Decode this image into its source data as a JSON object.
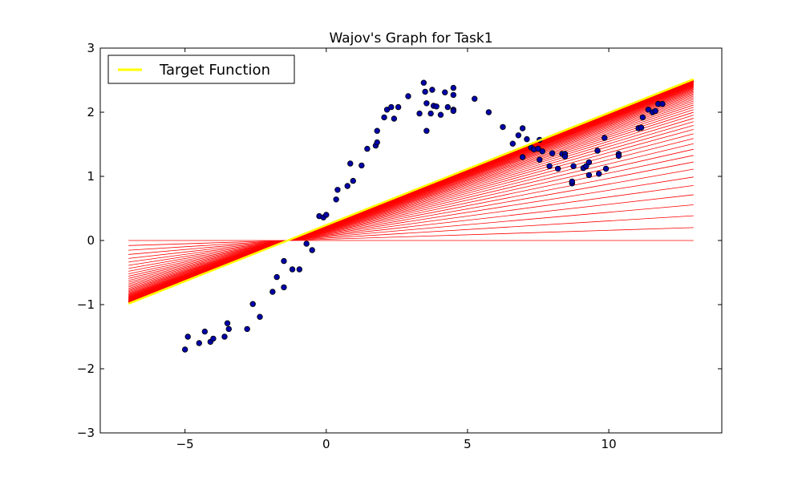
{
  "chart_data": {
    "type": "scatter",
    "title": "Wajov's Graph for Task1",
    "xlabel": "",
    "ylabel": "",
    "xlim": [
      -8,
      14
    ],
    "ylim": [
      -3,
      3
    ],
    "xticks": [
      -5,
      0,
      5,
      10
    ],
    "xtick_labels": [
      "−5",
      "0",
      "5",
      "10"
    ],
    "yticks": [
      3,
      2,
      1,
      0,
      -1,
      -2,
      -3
    ],
    "ytick_labels": [
      "3",
      "2",
      "1",
      "0",
      "−1",
      "−2",
      "−3"
    ],
    "grid": false,
    "legend": {
      "placement": "top-left",
      "entries": [
        {
          "label": "Target Function",
          "color": "#ffff00"
        }
      ]
    },
    "colors": {
      "scatter_fill": "#0000aa",
      "fit_lines": "#ff0000",
      "target": "#ffff00"
    },
    "fit_lines": {
      "x_range": [
        -7,
        13
      ],
      "count": 60,
      "first": {
        "intercept": 0.0,
        "slope": 0.0
      },
      "final": {
        "intercept": 0.24,
        "slope": 0.175
      }
    },
    "target_function": {
      "name": "Target Function",
      "x_range": [
        -7,
        13
      ],
      "intercept": 0.24,
      "slope": 0.175
    },
    "points": [
      [
        -5.0,
        -1.7
      ],
      [
        -4.9,
        -1.5
      ],
      [
        -4.5,
        -1.6
      ],
      [
        -4.3,
        -1.42
      ],
      [
        -4.1,
        -1.58
      ],
      [
        -4.0,
        -1.53
      ],
      [
        -3.6,
        -1.5
      ],
      [
        -3.5,
        -1.29
      ],
      [
        -3.45,
        -1.38
      ],
      [
        -2.8,
        -1.38
      ],
      [
        -2.6,
        -0.99
      ],
      [
        -2.35,
        -1.19
      ],
      [
        -1.9,
        -0.8
      ],
      [
        -1.75,
        -0.57
      ],
      [
        -1.5,
        -0.73
      ],
      [
        -1.5,
        -0.32
      ],
      [
        -1.2,
        -0.45
      ],
      [
        -0.95,
        -0.45
      ],
      [
        -0.7,
        -0.05
      ],
      [
        -0.5,
        -0.15
      ],
      [
        -0.25,
        0.38
      ],
      [
        -0.1,
        0.36
      ],
      [
        0.0,
        0.4
      ],
      [
        0.35,
        0.64
      ],
      [
        0.4,
        0.79
      ],
      [
        0.75,
        0.85
      ],
      [
        0.85,
        1.2
      ],
      [
        0.95,
        0.93
      ],
      [
        1.25,
        1.17
      ],
      [
        1.45,
        1.43
      ],
      [
        1.75,
        1.48
      ],
      [
        1.8,
        1.53
      ],
      [
        1.8,
        1.71
      ],
      [
        2.05,
        1.92
      ],
      [
        2.15,
        2.04
      ],
      [
        2.3,
        2.08
      ],
      [
        2.4,
        1.9
      ],
      [
        2.55,
        2.08
      ],
      [
        2.9,
        2.25
      ],
      [
        3.3,
        1.98
      ],
      [
        3.45,
        2.46
      ],
      [
        3.5,
        2.32
      ],
      [
        3.55,
        2.14
      ],
      [
        3.55,
        1.71
      ],
      [
        3.7,
        1.98
      ],
      [
        3.75,
        2.35
      ],
      [
        3.8,
        2.1
      ],
      [
        3.9,
        2.09
      ],
      [
        4.05,
        1.96
      ],
      [
        4.2,
        2.31
      ],
      [
        4.3,
        2.08
      ],
      [
        4.5,
        2.27
      ],
      [
        4.5,
        2.04
      ],
      [
        4.5,
        2.38
      ],
      [
        4.5,
        2.02
      ],
      [
        5.25,
        2.21
      ],
      [
        5.75,
        2.0
      ],
      [
        6.25,
        1.77
      ],
      [
        6.6,
        1.51
      ],
      [
        6.8,
        1.64
      ],
      [
        6.95,
        1.3
      ],
      [
        6.95,
        1.75
      ],
      [
        7.1,
        1.58
      ],
      [
        7.25,
        1.45
      ],
      [
        7.35,
        1.42
      ],
      [
        7.5,
        1.43
      ],
      [
        7.55,
        1.26
      ],
      [
        7.55,
        1.57
      ],
      [
        7.65,
        1.39
      ],
      [
        7.9,
        1.16
      ],
      [
        8.0,
        1.36
      ],
      [
        8.2,
        1.12
      ],
      [
        8.35,
        1.35
      ],
      [
        8.45,
        1.35
      ],
      [
        8.45,
        1.31
      ],
      [
        8.7,
        0.89
      ],
      [
        8.75,
        1.16
      ],
      [
        8.7,
        0.92
      ],
      [
        9.1,
        1.13
      ],
      [
        9.2,
        1.16
      ],
      [
        9.3,
        1.22
      ],
      [
        9.3,
        1.02
      ],
      [
        9.6,
        1.4
      ],
      [
        9.65,
        1.04
      ],
      [
        9.85,
        1.6
      ],
      [
        9.9,
        1.12
      ],
      [
        10.35,
        1.35
      ],
      [
        10.35,
        1.32
      ],
      [
        11.05,
        1.75
      ],
      [
        11.15,
        1.76
      ],
      [
        11.2,
        1.92
      ],
      [
        11.4,
        2.04
      ],
      [
        11.55,
        2.0
      ],
      [
        11.65,
        2.02
      ],
      [
        11.75,
        2.13
      ],
      [
        11.9,
        2.13
      ]
    ]
  }
}
